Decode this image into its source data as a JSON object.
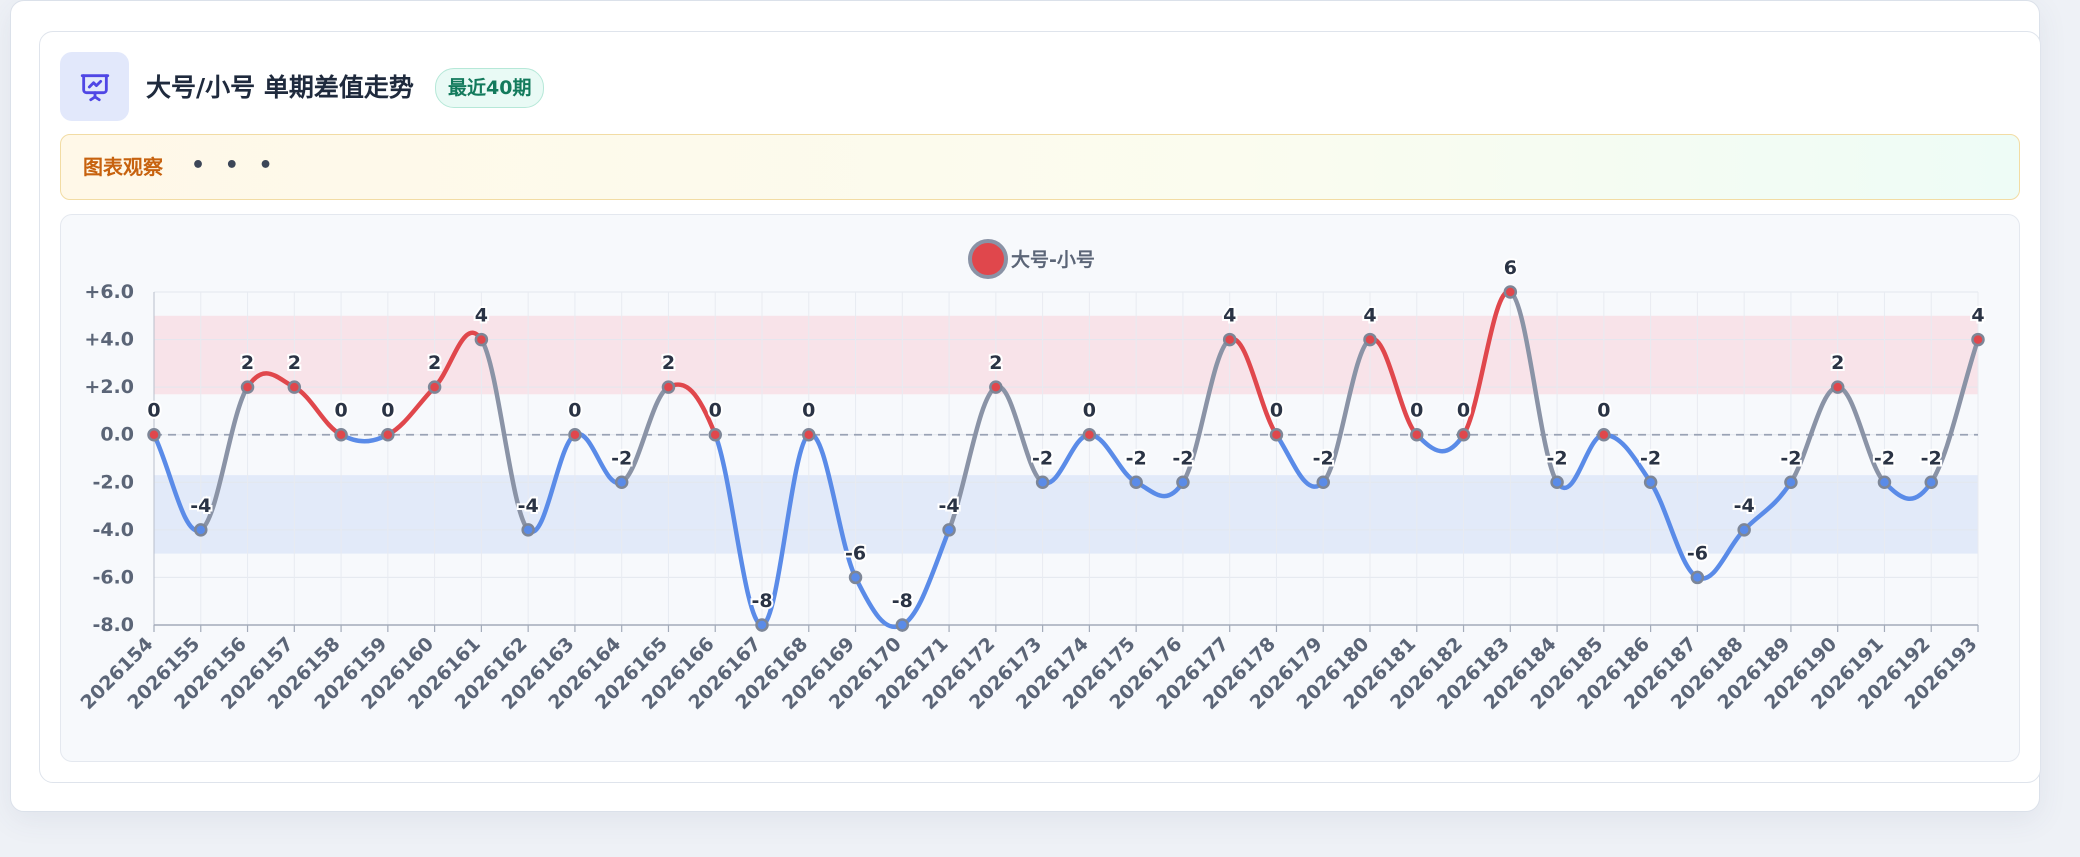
{
  "header": {
    "title": "大号/小号 单期差值走势",
    "badge": "最近40期",
    "icon": "presentation-chart-icon"
  },
  "insight": {
    "label": "图表观察",
    "dots": "• • •"
  },
  "colors": {
    "accent": "#4f46e5",
    "positive": "#e0474c",
    "negative": "#5a8be8",
    "neutral": "#8a93a6",
    "positive_band": "#f7dde3",
    "negative_band": "#dce6f8"
  },
  "chart_data": {
    "type": "line",
    "title": "",
    "xlabel": "",
    "ylabel": "",
    "legend": {
      "label": "大号-小号",
      "position": "top"
    },
    "ylim": [
      -8,
      6
    ],
    "yticks": [
      6,
      4,
      2,
      0,
      -2,
      -4,
      -6,
      -8
    ],
    "ytick_labels": [
      "+6.0",
      "+4.0",
      "+2.0",
      "0.0",
      "-2.0",
      "-4.0",
      "-6.0",
      "-8.0"
    ],
    "positive_band": [
      1.7,
      5
    ],
    "negative_band": [
      -5,
      -1.7
    ],
    "grid": true,
    "x": [
      "2026154",
      "2026155",
      "2026156",
      "2026157",
      "2026158",
      "2026159",
      "2026160",
      "2026161",
      "2026162",
      "2026163",
      "2026164",
      "2026165",
      "2026166",
      "2026167",
      "2026168",
      "2026169",
      "2026170",
      "2026171",
      "2026172",
      "2026173",
      "2026174",
      "2026175",
      "2026176",
      "2026177",
      "2026178",
      "2026179",
      "2026180",
      "2026181",
      "2026182",
      "2026183",
      "2026184",
      "2026185",
      "2026186",
      "2026187",
      "2026188",
      "2026189",
      "2026190",
      "2026191",
      "2026192",
      "2026193"
    ],
    "series": [
      {
        "name": "大号-小号",
        "values": [
          0,
          -4,
          2,
          2,
          0,
          0,
          2,
          4,
          -4,
          0,
          -2,
          2,
          0,
          -8,
          0,
          -6,
          -8,
          -4,
          2,
          -2,
          0,
          -2,
          -2,
          4,
          0,
          -2,
          4,
          0,
          0,
          6,
          -2,
          0,
          -2,
          -6,
          -4,
          -2,
          2,
          -2,
          -2,
          4
        ]
      }
    ]
  }
}
